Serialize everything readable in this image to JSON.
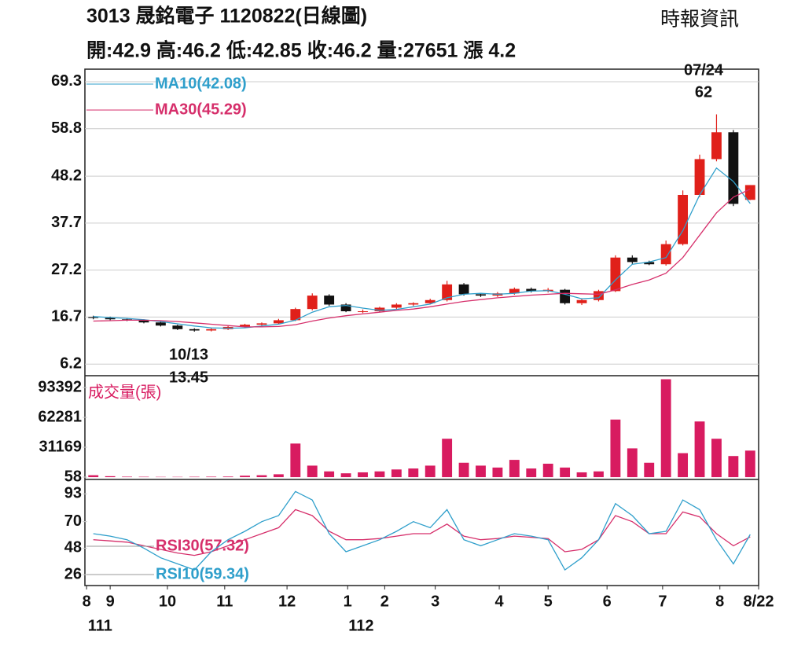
{
  "header": {
    "title": "3013  晟銘電子 1120822(日線圖)",
    "quote": "開:42.9 高:46.2 低:42.85 收:46.2 量:27651 漲 4.2",
    "source": "時報資訊"
  },
  "chart_data": [
    {
      "type": "candlestick",
      "xlim": [
        0,
        40
      ],
      "ylim": [
        3.6,
        72.1
      ],
      "yticks": [
        69.3,
        58.8,
        48.2,
        37.7,
        27.2,
        16.7,
        6.2
      ],
      "grid": true,
      "up_color": "#e0201a",
      "down_color": "#111111",
      "open": [
        16.7,
        16.5,
        16.2,
        16.0,
        15.5,
        14.8,
        14.0,
        13.7,
        14.0,
        14.5,
        15.0,
        15.3,
        16.0,
        18.5,
        21.5,
        19.5,
        18.0,
        18.0,
        18.8,
        19.5,
        19.8,
        20.5,
        24.0,
        21.8,
        21.5,
        22.0,
        23.0,
        22.5,
        22.8,
        19.8,
        20.5,
        22.5,
        30.0,
        29.0,
        28.5,
        33.0,
        44.0,
        52.0,
        58.0,
        42.9
      ],
      "high": [
        17.0,
        16.8,
        16.5,
        16.2,
        15.7,
        15.0,
        14.2,
        14.2,
        14.7,
        15.2,
        15.5,
        16.3,
        18.8,
        22.0,
        21.8,
        19.8,
        18.4,
        19.0,
        19.8,
        20.0,
        20.8,
        24.8,
        24.3,
        22.0,
        22.3,
        23.3,
        23.3,
        23.2,
        23.0,
        20.8,
        22.8,
        30.5,
        30.5,
        29.3,
        33.8,
        45.0,
        53.0,
        62.0,
        58.5,
        46.2
      ],
      "low": [
        16.2,
        16.0,
        15.8,
        15.3,
        14.6,
        13.8,
        13.45,
        13.5,
        13.8,
        14.3,
        14.8,
        15.1,
        15.8,
        18.2,
        19.2,
        17.8,
        17.6,
        17.8,
        18.5,
        19.2,
        19.5,
        20.2,
        21.5,
        21.2,
        21.2,
        21.7,
        22.2,
        22.2,
        19.5,
        19.4,
        20.2,
        22.3,
        28.6,
        28.3,
        28.2,
        32.7,
        43.5,
        51.5,
        41.5,
        42.85
      ],
      "close": [
        16.5,
        16.2,
        16.0,
        15.5,
        14.8,
        14.0,
        13.7,
        14.0,
        14.5,
        15.0,
        15.3,
        16.0,
        18.5,
        21.5,
        19.5,
        18.0,
        18.0,
        18.8,
        19.5,
        19.8,
        20.5,
        24.0,
        21.8,
        21.5,
        22.0,
        23.0,
        22.5,
        22.8,
        19.8,
        20.5,
        22.5,
        30.0,
        29.0,
        28.5,
        33.0,
        44.0,
        52.0,
        58.0,
        42.0,
        46.2
      ],
      "series": [
        {
          "name": "MA10(42.08)",
          "color": "#2f9fcb",
          "values": [
            16.8,
            16.6,
            16.4,
            16.1,
            15.7,
            15.2,
            14.7,
            14.3,
            14.2,
            14.3,
            14.7,
            15.1,
            16.0,
            17.8,
            19.0,
            19.3,
            18.7,
            18.2,
            18.4,
            19.0,
            19.6,
            21.0,
            21.8,
            22.0,
            21.8,
            22.0,
            22.5,
            22.6,
            21.8,
            20.8,
            21.0,
            25.0,
            28.5,
            29.0,
            30.0,
            36.0,
            44.0,
            50.0,
            47.0,
            42.08
          ]
        },
        {
          "name": "MA30(45.29)",
          "color": "#d62f6b",
          "values": [
            15.8,
            15.9,
            16.0,
            16.0,
            15.9,
            15.7,
            15.4,
            15.1,
            14.8,
            14.5,
            14.5,
            14.6,
            15.0,
            15.8,
            16.5,
            17.0,
            17.4,
            17.8,
            18.2,
            18.5,
            19.0,
            19.6,
            20.2,
            20.6,
            21.0,
            21.3,
            21.6,
            21.8,
            22.0,
            21.9,
            21.8,
            22.8,
            24.0,
            25.0,
            26.5,
            30.0,
            35.0,
            40.0,
            43.5,
            45.29
          ]
        }
      ],
      "annotations": [
        "07/24",
        "62",
        "10/13",
        "13.45"
      ]
    },
    {
      "type": "bar",
      "xlim": [
        0,
        40
      ],
      "ylim": [
        -2400,
        105700
      ],
      "yticks": [
        93392,
        62281,
        31169,
        58
      ],
      "label": "成交量(張)",
      "color": "#d81b60",
      "values": [
        2000,
        1000,
        500,
        400,
        300,
        300,
        400,
        500,
        600,
        1500,
        2000,
        3000,
        35000,
        12000,
        6000,
        4000,
        5000,
        6000,
        8000,
        9000,
        12000,
        40000,
        15000,
        12000,
        10000,
        18000,
        9000,
        14000,
        10000,
        5000,
        6000,
        60000,
        30000,
        15000,
        102000,
        25000,
        58000,
        40000,
        22000,
        27651
      ]
    },
    {
      "type": "line",
      "xlim": [
        0,
        40
      ],
      "ylim": [
        17,
        105
      ],
      "yticks": [
        93,
        70,
        48,
        26
      ],
      "series": [
        {
          "name": "RSI30(57.32)",
          "color": "#d62f6b",
          "values": [
            55,
            54,
            53,
            50,
            47,
            44,
            42,
            45,
            50,
            55,
            60,
            65,
            80,
            75,
            62,
            55,
            55,
            56,
            58,
            60,
            60,
            68,
            58,
            55,
            56,
            58,
            57,
            56,
            45,
            47,
            55,
            75,
            70,
            60,
            60,
            78,
            74,
            60,
            50,
            57.32
          ]
        },
        {
          "name": "RSI10(59.34)",
          "color": "#2f9fcb",
          "values": [
            60,
            58,
            55,
            48,
            40,
            35,
            30,
            45,
            55,
            62,
            70,
            75,
            95,
            88,
            60,
            45,
            50,
            55,
            62,
            70,
            65,
            80,
            55,
            50,
            55,
            60,
            58,
            55,
            30,
            40,
            55,
            85,
            75,
            60,
            62,
            88,
            80,
            55,
            35,
            59.34
          ]
        }
      ],
      "xticks": [
        {
          "value": 0.1,
          "label": "8"
        },
        {
          "value": 1.5,
          "label": "9"
        },
        {
          "value": 4.9,
          "label": "10"
        },
        {
          "value": 8.3,
          "label": "11"
        },
        {
          "value": 12.0,
          "label": "12"
        },
        {
          "value": 15.6,
          "label": "1"
        },
        {
          "value": 17.8,
          "label": "2"
        },
        {
          "value": 20.8,
          "label": "3"
        },
        {
          "value": 24.6,
          "label": "4"
        },
        {
          "value": 27.5,
          "label": "5"
        },
        {
          "value": 31.0,
          "label": "6"
        },
        {
          "value": 34.3,
          "label": "7"
        },
        {
          "value": 37.7,
          "label": "8"
        },
        {
          "value": 40,
          "label": "8/22"
        }
      ],
      "year_labels": [
        {
          "value": 0.9,
          "label": "111"
        },
        {
          "value": 16.4,
          "label": "112"
        }
      ]
    }
  ]
}
